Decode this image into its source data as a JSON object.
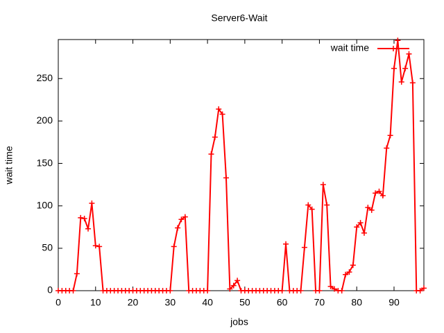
{
  "chart_data": {
    "type": "line",
    "title": "Server6-Wait",
    "x_label": "jobs",
    "y_label": "wait time",
    "x": [
      0,
      1,
      2,
      3,
      4,
      5,
      6,
      7,
      8,
      9,
      10,
      11,
      12,
      13,
      14,
      15,
      16,
      17,
      18,
      19,
      20,
      21,
      22,
      23,
      24,
      25,
      26,
      27,
      28,
      29,
      30,
      31,
      32,
      33,
      34,
      35,
      36,
      37,
      38,
      39,
      40,
      41,
      42,
      43,
      44,
      45,
      46,
      47,
      48,
      49,
      50,
      51,
      52,
      53,
      54,
      55,
      56,
      57,
      58,
      59,
      60,
      61,
      62,
      63,
      64,
      65,
      66,
      67,
      68,
      69,
      70,
      71,
      72,
      73,
      74,
      75,
      76,
      77,
      78,
      79,
      80,
      81,
      82,
      83,
      84,
      85,
      86,
      87,
      88,
      89,
      90,
      91,
      92,
      93,
      94,
      95,
      96,
      97,
      98
    ],
    "series": [
      {
        "name": "wait time",
        "color": "#ff0000",
        "values": [
          0,
          0,
          0,
          0,
          0,
          20,
          86,
          85,
          73,
          103,
          53,
          52,
          0,
          0,
          0,
          0,
          0,
          0,
          0,
          0,
          0,
          0,
          0,
          0,
          0,
          0,
          0,
          0,
          0,
          0,
          0,
          52,
          74,
          84,
          87,
          0,
          0,
          0,
          0,
          0,
          0,
          161,
          181,
          214,
          208,
          133,
          2,
          6,
          12,
          0,
          0,
          0,
          0,
          0,
          0,
          0,
          0,
          0,
          0,
          0,
          0,
          55,
          0,
          0,
          0,
          0,
          51,
          101,
          96,
          0,
          0,
          125,
          101,
          5,
          2,
          0,
          0,
          19,
          22,
          30,
          75,
          80,
          68,
          98,
          95,
          115,
          117,
          112,
          168,
          183,
          262,
          295,
          246,
          262,
          279,
          245,
          0,
          0,
          3
        ]
      }
    ],
    "xlim": [
      0,
      98
    ],
    "ylim": [
      0,
      296
    ],
    "xticks": [
      0,
      10,
      20,
      30,
      40,
      50,
      60,
      70,
      80,
      90
    ],
    "yticks": [
      0,
      50,
      100,
      150,
      200,
      250
    ],
    "legend": "top-right"
  }
}
